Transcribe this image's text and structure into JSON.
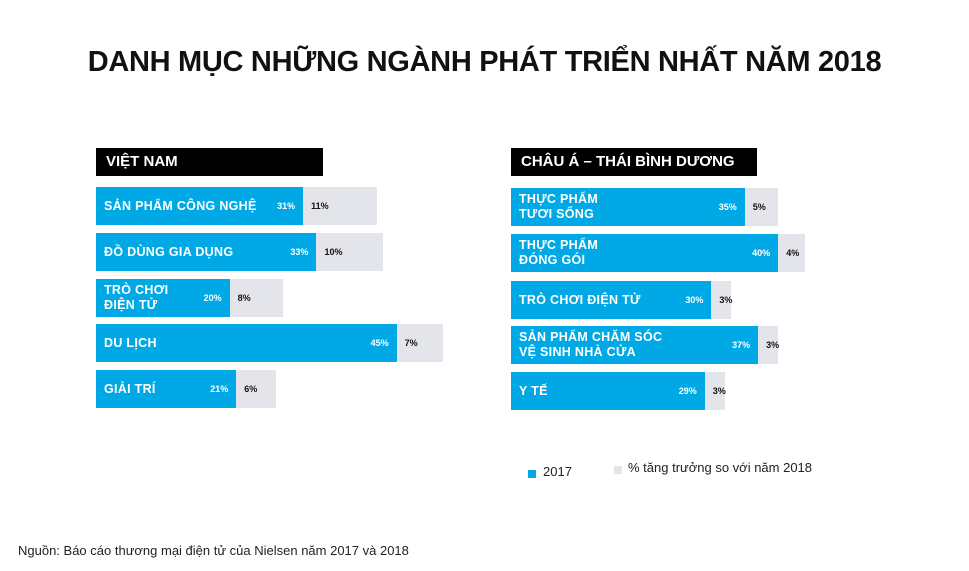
{
  "title": "DANH MỤC NHỮNG NGÀNH PHÁT TRIỂN NHẤT NĂM 2018",
  "legend": [
    {
      "name": "2017",
      "color": "#00a9e6"
    },
    {
      "name": "% tăng trưởng so với năm 2018",
      "color": "#e4e5ea"
    }
  ],
  "source": "Nguồn: Báo cáo thương mại điện tử của Nielsen năm 2017 và 2018",
  "chart_data": [
    {
      "type": "stacked-bar",
      "orientation": "horizontal",
      "title": "VIỆT NAM",
      "categories": [
        "SẢN PHẨM CÔNG NGHỆ",
        "ĐỒ DÙNG GIA DỤNG",
        "TRÒ CHƠI\nĐIỆN TỬ",
        "DU LỊCH",
        "GIẢI TRÍ"
      ],
      "series": [
        {
          "values": [
            31,
            33,
            20,
            45,
            21
          ],
          "value_labels": [
            "31%",
            "33%",
            "20%",
            "45%",
            "21%"
          ]
        },
        {
          "values": [
            11,
            10,
            8,
            7,
            6
          ],
          "value_labels": [
            "11%",
            "10%",
            "8%",
            "7%",
            "6%"
          ]
        }
      ]
    },
    {
      "type": "stacked-bar",
      "orientation": "horizontal",
      "title": "CHÂU Á – THÁI BÌNH DƯƠNG",
      "categories": [
        "THỰC PHẨM\nTƯƠI SỐNG",
        "THỰC PHẨM\nĐÓNG GÓI",
        "TRÒ CHƠI ĐIỆN TỬ",
        "SẢN PHẨM CHĂM SÓC\nVỆ SINH NHÀ CỬA",
        "Y TẾ"
      ],
      "series": [
        {
          "values": [
            35,
            40,
            30,
            37,
            29
          ],
          "value_labels": [
            "35%",
            "40%",
            "30%",
            "37%",
            "29%"
          ]
        },
        {
          "values": [
            5,
            4,
            3,
            3,
            3
          ],
          "value_labels": [
            "5%",
            "4%",
            "3%",
            "3%",
            "3%"
          ]
        }
      ]
    }
  ]
}
